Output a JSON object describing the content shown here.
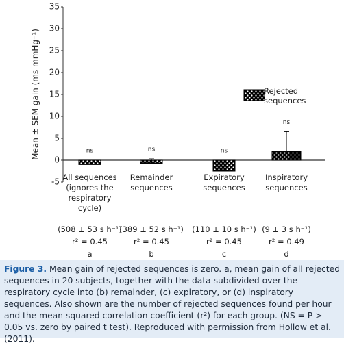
{
  "chart_data": {
    "type": "bar",
    "ylabel": "Mean ± SEM gain (ms mmHg⁻¹)",
    "categories": [
      "All sequences (ignores the respiratory cycle)",
      "Remainder sequences",
      "Expiratory sequences",
      "Inspiratory sequences"
    ],
    "rates": [
      "(508 ± 53 s h⁻¹)",
      "(389 ± 52 s h⁻¹)",
      "(110 ± 10 s h⁻¹)",
      "(9 ± 3 s h⁻¹)"
    ],
    "r2": [
      "r² = 0.45",
      "r² = 0.45",
      "r² = 0.45",
      "r² = 0.49"
    ],
    "letters": [
      "a",
      "b",
      "c",
      "d"
    ],
    "annotations": [
      "ns",
      "ns",
      "ns",
      "ns"
    ],
    "series": [
      {
        "name": "Rejected sequences",
        "color": "#000000",
        "values": [
          -1,
          -0.7,
          -2.5,
          2
        ],
        "errors": [
          0.2,
          1,
          0.3,
          4.5
        ]
      }
    ],
    "ylim": [
      -5,
      35
    ],
    "yticks": [
      -5,
      0,
      5,
      10,
      15,
      20,
      25,
      30,
      35
    ]
  },
  "caption": {
    "label": "Figure 3.",
    "text": "Mean gain of rejected sequences is zero. a, mean gain of all rejected sequences in 20 subjects, together with the data subdivided over the respiratory cycle into (b) remainder, (c) expiratory, or (d) inspiratory sequences. Also shown are the number of rejected sequences found per hour and the mean squared correlation coefficient (r²) for each group. (NS = P > 0.05 vs. zero by paired t test). Reproduced with permission from Hollow et al. (2011)."
  }
}
